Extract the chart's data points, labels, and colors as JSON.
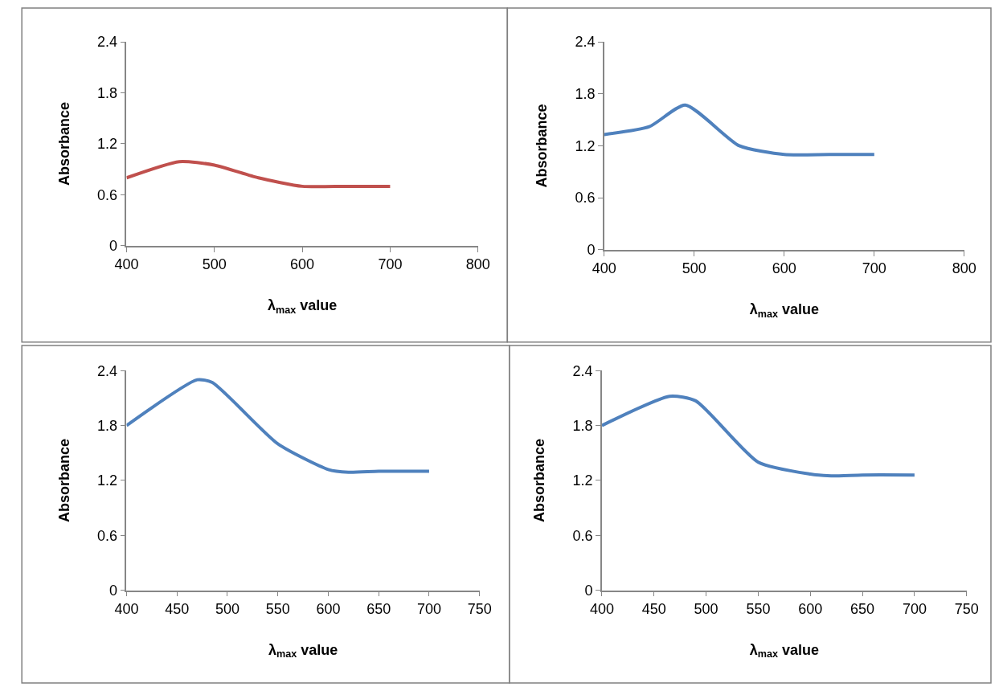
{
  "chart_data": [
    {
      "type": "line",
      "xlabel": "λ$_{max}$ value",
      "ylabel": "Absorbance",
      "x": [
        400,
        460,
        500,
        550,
        600,
        650,
        700
      ],
      "series": [
        {
          "color": "#c0504d",
          "values": [
            0.8,
            0.99,
            0.95,
            0.8,
            0.7,
            0.7,
            0.7
          ]
        }
      ],
      "xlim": [
        400,
        800
      ],
      "xticks": [
        400,
        500,
        600,
        700,
        800
      ],
      "ylim": [
        0,
        2.4
      ],
      "yticks": [
        0,
        0.6,
        1.2,
        1.8,
        2.4
      ],
      "grid": false,
      "marker": "none",
      "line_style": "solid"
    },
    {
      "type": "line",
      "xlabel": "λ$_{max}$ value",
      "ylabel": "Absorbance",
      "x": [
        400,
        450,
        490,
        550,
        600,
        650,
        700
      ],
      "series": [
        {
          "color": "#4f81bd",
          "values": [
            1.33,
            1.42,
            1.67,
            1.2,
            1.1,
            1.1,
            1.1
          ]
        }
      ],
      "xlim": [
        400,
        800
      ],
      "xticks": [
        400,
        500,
        600,
        700,
        800
      ],
      "ylim": [
        0,
        2.4
      ],
      "yticks": [
        0,
        0.6,
        1.2,
        1.8,
        2.4
      ],
      "grid": false,
      "marker": "none",
      "line_style": "solid"
    },
    {
      "type": "line",
      "xlabel": "λ$_{max}$ value",
      "ylabel": "Absorbance",
      "x": [
        400,
        470,
        485,
        550,
        600,
        620,
        650,
        700
      ],
      "series": [
        {
          "color": "#4f81bd",
          "values": [
            1.8,
            2.3,
            2.27,
            1.6,
            1.32,
            1.29,
            1.3,
            1.3
          ]
        }
      ],
      "xlim": [
        400,
        750
      ],
      "xticks": [
        400,
        450,
        500,
        550,
        600,
        650,
        700,
        750
      ],
      "ylim": [
        0,
        2.4
      ],
      "yticks": [
        0,
        0.6,
        1.2,
        1.8,
        2.4
      ],
      "grid": false,
      "marker": "none",
      "line_style": "solid"
    },
    {
      "type": "line",
      "xlabel": "λ$_{max}$ value",
      "ylabel": "Absorbance",
      "x": [
        400,
        465,
        490,
        550,
        600,
        620,
        650,
        700
      ],
      "series": [
        {
          "color": "#4f81bd",
          "values": [
            1.8,
            2.12,
            2.07,
            1.4,
            1.27,
            1.25,
            1.26,
            1.26
          ]
        }
      ],
      "xlim": [
        400,
        750
      ],
      "xticks": [
        400,
        450,
        500,
        550,
        600,
        650,
        700,
        750
      ],
      "ylim": [
        0,
        2.4
      ],
      "yticks": [
        0,
        0.6,
        1.2,
        1.8,
        2.4
      ],
      "grid": false,
      "marker": "none",
      "line_style": "solid"
    }
  ]
}
